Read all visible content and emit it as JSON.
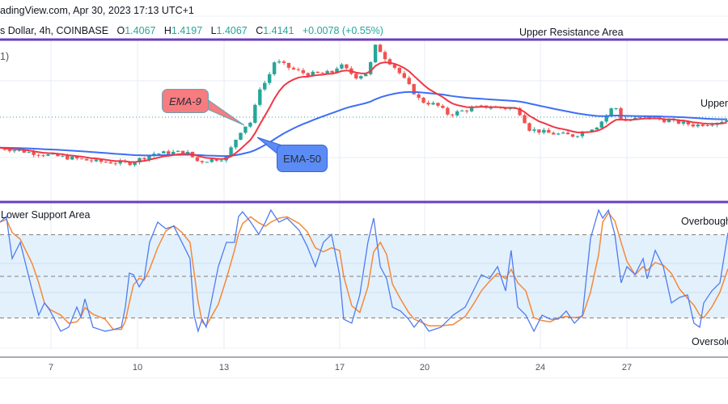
{
  "header": {
    "source_line": "adingView.com, Apr 30, 2023 17:13 UTC+1",
    "symbol": "s Dollar, 4h, COINBASE",
    "open_label": "O",
    "open": "1.4067",
    "high_label": "H",
    "high": "1.4197",
    "low_label": "L",
    "low": "1.4067",
    "close_label": "C",
    "close": "1.4141",
    "change": "+0.0078 (+0.55%)",
    "indicator_fragment": "1)"
  },
  "annotations": {
    "upper_resistance": "Upper Resistance Area",
    "upper_support_fragment": "Upper",
    "lower_support": "Lower Support Area",
    "overbought": "Overbought",
    "oversold": "Oversold",
    "ema9": "EMA-9",
    "ema50": "EMA-50"
  },
  "colors": {
    "up": "#26a69a",
    "down": "#ef5350",
    "ema9": "#f23645",
    "ema50": "#3d6ef5",
    "stoch_k": "#4f7cf0",
    "stoch_d": "#f5883a",
    "zone_line": "#6a3fc1",
    "band_fill": "#e3f1fc"
  },
  "chart_data": [
    {
      "type": "candlestick",
      "x_unit": "day (April 2023)",
      "x_ticks": [
        "7",
        "10",
        "13",
        "17",
        "20",
        "24",
        "27"
      ],
      "last_price": 1.4141,
      "close_path": [
        [
          5.24,
          1.3989
        ],
        [
          6.92,
          1.3953
        ],
        [
          8.6,
          1.3921
        ],
        [
          9.72,
          1.3913
        ],
        [
          10.56,
          1.3961
        ],
        [
          11.68,
          1.3969
        ],
        [
          12.1,
          1.3921
        ],
        [
          13.08,
          1.3941
        ],
        [
          13.36,
          1.4021
        ],
        [
          13.64,
          1.4089
        ],
        [
          13.97,
          1.4121
        ],
        [
          14.2,
          1.4281
        ],
        [
          14.48,
          1.4321
        ],
        [
          14.76,
          1.4421
        ],
        [
          15.32,
          1.4381
        ],
        [
          15.88,
          1.4353
        ],
        [
          16.72,
          1.4361
        ],
        [
          17.0,
          1.4401
        ],
        [
          17.56,
          1.4341
        ],
        [
          17.98,
          1.4361
        ],
        [
          18.26,
          1.4501
        ],
        [
          18.54,
          1.4441
        ],
        [
          18.96,
          1.4381
        ],
        [
          19.52,
          1.4273
        ],
        [
          19.8,
          1.4221
        ],
        [
          20.36,
          1.4201
        ],
        [
          20.78,
          1.4153
        ],
        [
          21.48,
          1.4181
        ],
        [
          22.04,
          1.4193
        ],
        [
          23.16,
          1.4181
        ],
        [
          23.58,
          1.4081
        ],
        [
          24.28,
          1.4061
        ],
        [
          25.12,
          1.4049
        ],
        [
          25.96,
          1.4101
        ],
        [
          26.52,
          1.4201
        ],
        [
          26.8,
          1.4121
        ],
        [
          27.64,
          1.4141
        ],
        [
          28.48,
          1.4121
        ],
        [
          29.32,
          1.4101
        ],
        [
          29.88,
          1.4113
        ],
        [
          30.45,
          1.4129
        ]
      ],
      "overlays": [
        {
          "name": "EMA-9",
          "period": 9
        },
        {
          "name": "EMA-50",
          "period": 50
        }
      ],
      "levels": [
        {
          "name": "Upper Resistance Area"
        }
      ]
    },
    {
      "type": "line",
      "indicator": "stochastic",
      "ylim": [
        0,
        100
      ],
      "bands": {
        "overbought": 80,
        "middle": 50,
        "oversold": 20
      },
      "k": [
        [
          5.24,
          89.1
        ],
        [
          5.46,
          93.1
        ],
        [
          5.66,
          62.8
        ],
        [
          5.94,
          74.5
        ],
        [
          6.36,
          39.5
        ],
        [
          6.58,
          22.0
        ],
        [
          6.78,
          30.8
        ],
        [
          6.98,
          25.0
        ],
        [
          7.34,
          10.4
        ],
        [
          7.62,
          13.3
        ],
        [
          7.9,
          27.8
        ],
        [
          8.04,
          20.8
        ],
        [
          8.18,
          33.7
        ],
        [
          8.46,
          13.3
        ],
        [
          8.88,
          10.4
        ],
        [
          9.16,
          11.5
        ],
        [
          9.44,
          13.3
        ],
        [
          9.58,
          27.8
        ],
        [
          9.72,
          52.3
        ],
        [
          9.86,
          51.2
        ],
        [
          10.06,
          42.4
        ],
        [
          10.23,
          48.3
        ],
        [
          10.42,
          74.5
        ],
        [
          10.7,
          89.1
        ],
        [
          10.98,
          84.4
        ],
        [
          11.26,
          86.1
        ],
        [
          11.54,
          74.5
        ],
        [
          11.82,
          62.8
        ],
        [
          11.96,
          22.0
        ],
        [
          12.1,
          10.4
        ],
        [
          12.24,
          19.1
        ],
        [
          12.38,
          13.3
        ],
        [
          12.8,
          57.0
        ],
        [
          13.08,
          74.5
        ],
        [
          13.36,
          74.5
        ],
        [
          13.5,
          93.1
        ],
        [
          13.64,
          96.6
        ],
        [
          13.92,
          89.1
        ],
        [
          14.2,
          80.3
        ],
        [
          14.43,
          89.1
        ],
        [
          14.62,
          97.8
        ],
        [
          14.9,
          89.1
        ],
        [
          15.18,
          92.0
        ],
        [
          15.6,
          83.2
        ],
        [
          15.88,
          71.6
        ],
        [
          16.16,
          57.0
        ],
        [
          16.44,
          74.5
        ],
        [
          16.72,
          80.3
        ],
        [
          17.0,
          51.2
        ],
        [
          17.14,
          19.1
        ],
        [
          17.42,
          16.2
        ],
        [
          17.7,
          36.6
        ],
        [
          17.98,
          74.5
        ],
        [
          18.18,
          92.0
        ],
        [
          18.41,
          57.0
        ],
        [
          18.63,
          48.3
        ],
        [
          18.83,
          27.8
        ],
        [
          19.11,
          25.0
        ],
        [
          19.39,
          19.1
        ],
        [
          19.58,
          13.3
        ],
        [
          19.8,
          19.1
        ],
        [
          20.09,
          10.4
        ],
        [
          20.51,
          13.3
        ],
        [
          20.93,
          22.0
        ],
        [
          21.35,
          27.8
        ],
        [
          21.63,
          39.5
        ],
        [
          21.91,
          51.2
        ],
        [
          22.19,
          48.3
        ],
        [
          22.47,
          57.0
        ],
        [
          22.75,
          39.5
        ],
        [
          22.94,
          68.7
        ],
        [
          23.17,
          27.8
        ],
        [
          23.45,
          22.0
        ],
        [
          23.73,
          10.4
        ],
        [
          24.01,
          22.0
        ],
        [
          24.29,
          19.1
        ],
        [
          24.57,
          19.1
        ],
        [
          24.85,
          25.0
        ],
        [
          25.13,
          16.2
        ],
        [
          25.41,
          22.0
        ],
        [
          25.69,
          77.4
        ],
        [
          25.97,
          97.8
        ],
        [
          26.11,
          92.0
        ],
        [
          26.31,
          97.8
        ],
        [
          26.53,
          80.3
        ],
        [
          26.75,
          45.3
        ],
        [
          26.95,
          57.0
        ],
        [
          27.23,
          51.2
        ],
        [
          27.51,
          62.8
        ],
        [
          27.65,
          48.3
        ],
        [
          27.93,
          68.7
        ],
        [
          28.21,
          57.0
        ],
        [
          28.49,
          30.8
        ],
        [
          28.77,
          34.8
        ],
        [
          29.05,
          36.6
        ],
        [
          29.27,
          16.2
        ],
        [
          29.47,
          13.3
        ],
        [
          29.61,
          30.8
        ],
        [
          29.89,
          39.5
        ],
        [
          30.17,
          45.3
        ],
        [
          30.45,
          81.5
        ]
      ]
    }
  ]
}
